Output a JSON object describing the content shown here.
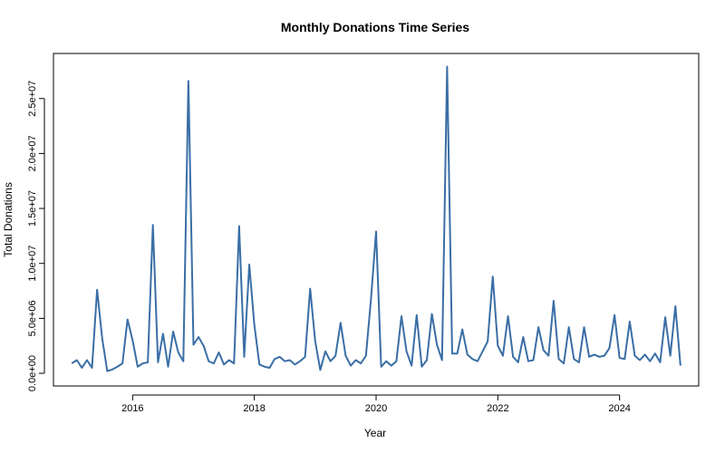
{
  "chart_data": {
    "type": "line",
    "title": "Monthly Donations Time Series",
    "xlabel": "Year",
    "ylabel": "Total Donations",
    "x_ticks": [
      2016,
      2018,
      2020,
      2022,
      2024
    ],
    "x_tick_labels": [
      "2016",
      "2018",
      "2020",
      "2022",
      "2024"
    ],
    "y_ticks": [
      0,
      5000000,
      10000000,
      15000000,
      20000000,
      25000000
    ],
    "y_tick_labels": [
      "0.0e+00",
      "5.0e+06",
      "1.0e+07",
      "1.5e+07",
      "2.0e+07",
      "2.5e+07"
    ],
    "xlim": [
      2014.7,
      2025.3
    ],
    "ylim": [
      -1150000,
      29100000
    ],
    "grid": false,
    "line_color": "#3a6ea5",
    "start": "2015-01",
    "end": "2025-01",
    "series": [
      {
        "values": [
          900000,
          1200000,
          500000,
          1200000,
          500000,
          7600000,
          3200000,
          200000,
          350000,
          600000,
          900000,
          4900000,
          3000000,
          600000,
          900000,
          1000000,
          13500000,
          1000000,
          3600000,
          600000,
          3800000,
          1900000,
          1100000,
          26600000,
          2600000,
          3300000,
          2500000,
          1100000,
          900000,
          1900000,
          800000,
          1200000,
          900000,
          13400000,
          1500000,
          9900000,
          4400000,
          800000,
          600000,
          500000,
          1300000,
          1500000,
          1100000,
          1200000,
          800000,
          1100000,
          1500000,
          7700000,
          2900000,
          300000,
          2000000,
          1100000,
          1600000,
          4600000,
          1600000,
          700000,
          1200000,
          900000,
          1600000,
          6800000,
          12900000,
          600000,
          1100000,
          700000,
          1100000,
          5200000,
          2000000,
          700000,
          5300000,
          600000,
          1200000,
          5400000,
          2600000,
          1200000,
          27900000,
          1800000,
          1800000,
          4000000,
          1700000,
          1300000,
          1100000,
          2000000,
          2900000,
          8800000,
          2500000,
          1600000,
          5200000,
          1500000,
          1000000,
          3300000,
          1100000,
          1200000,
          4200000,
          2100000,
          1600000,
          6600000,
          1300000,
          900000,
          4200000,
          1300000,
          1000000,
          4200000,
          1500000,
          1700000,
          1500000,
          1600000,
          2300000,
          5300000,
          1400000,
          1300000,
          4700000,
          1600000,
          1200000,
          1700000,
          1100000,
          1800000,
          1000000,
          5100000,
          1600000,
          6100000,
          700000
        ]
      }
    ]
  }
}
